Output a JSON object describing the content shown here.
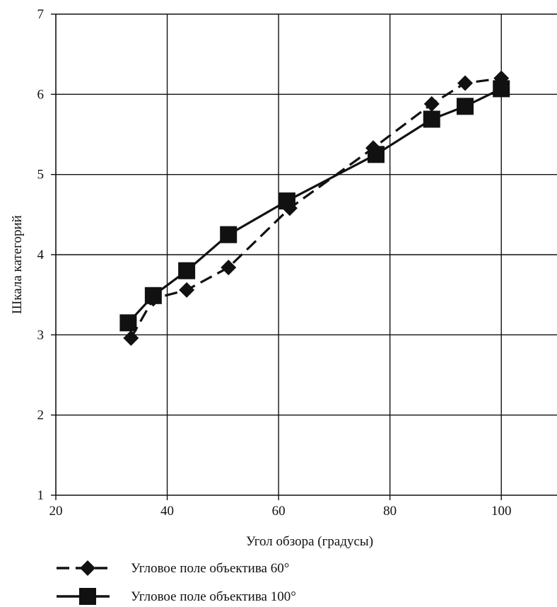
{
  "chart_data": {
    "type": "line",
    "title": "",
    "xlabel": "Угол обзора (градусы)",
    "ylabel": "Шкала категорий",
    "xlim": [
      20,
      110
    ],
    "ylim": [
      1,
      7
    ],
    "xticks": [
      20,
      40,
      60,
      80,
      100
    ],
    "yticks": [
      1,
      2,
      3,
      4,
      5,
      6,
      7
    ],
    "grid": true,
    "legend_position": "bottom",
    "series": [
      {
        "name": "Угловое поле объектива 60°",
        "line_style": "dashed",
        "marker": "diamond",
        "color": "#111111",
        "x": [
          33.5,
          37.5,
          43.5,
          51,
          62,
          77,
          87.5,
          93.5,
          100
        ],
        "y": [
          2.96,
          3.45,
          3.56,
          3.84,
          4.58,
          5.33,
          5.88,
          6.14,
          6.2
        ]
      },
      {
        "name": "Угловое поле объектива 100°",
        "line_style": "solid",
        "marker": "square",
        "color": "#111111",
        "x": [
          33,
          37.5,
          43.5,
          51,
          61.5,
          77.5,
          87.5,
          93.5,
          100
        ],
        "y": [
          3.15,
          3.49,
          3.8,
          4.25,
          4.67,
          5.25,
          5.69,
          5.85,
          6.07
        ]
      }
    ]
  }
}
